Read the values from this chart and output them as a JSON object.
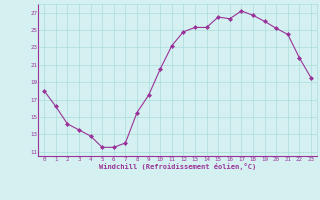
{
  "x": [
    0,
    1,
    2,
    3,
    4,
    5,
    6,
    7,
    8,
    9,
    10,
    11,
    12,
    13,
    14,
    15,
    16,
    17,
    18,
    19,
    20,
    21,
    22,
    23
  ],
  "y": [
    18.0,
    16.2,
    14.2,
    13.5,
    12.8,
    11.5,
    11.5,
    12.0,
    15.5,
    17.5,
    20.5,
    23.2,
    24.8,
    25.3,
    25.3,
    26.5,
    26.3,
    27.2,
    26.7,
    26.0,
    25.2,
    24.5,
    21.8,
    19.5
  ],
  "line_color": "#993399",
  "marker": "D",
  "marker_size": 2,
  "bg_color": "#d5f0f0",
  "grid_color": "#aadddd",
  "xlabel": "Windchill (Refroidissement éolien,°C)",
  "xlabel_color": "#993399",
  "tick_color": "#993399",
  "yticks": [
    11,
    13,
    15,
    17,
    19,
    21,
    23,
    25,
    27
  ],
  "xticks": [
    0,
    1,
    2,
    3,
    4,
    5,
    6,
    7,
    8,
    9,
    10,
    11,
    12,
    13,
    14,
    15,
    16,
    17,
    18,
    19,
    20,
    21,
    22,
    23
  ],
  "ylim": [
    10.5,
    28.0
  ],
  "xlim": [
    -0.5,
    23.5
  ]
}
